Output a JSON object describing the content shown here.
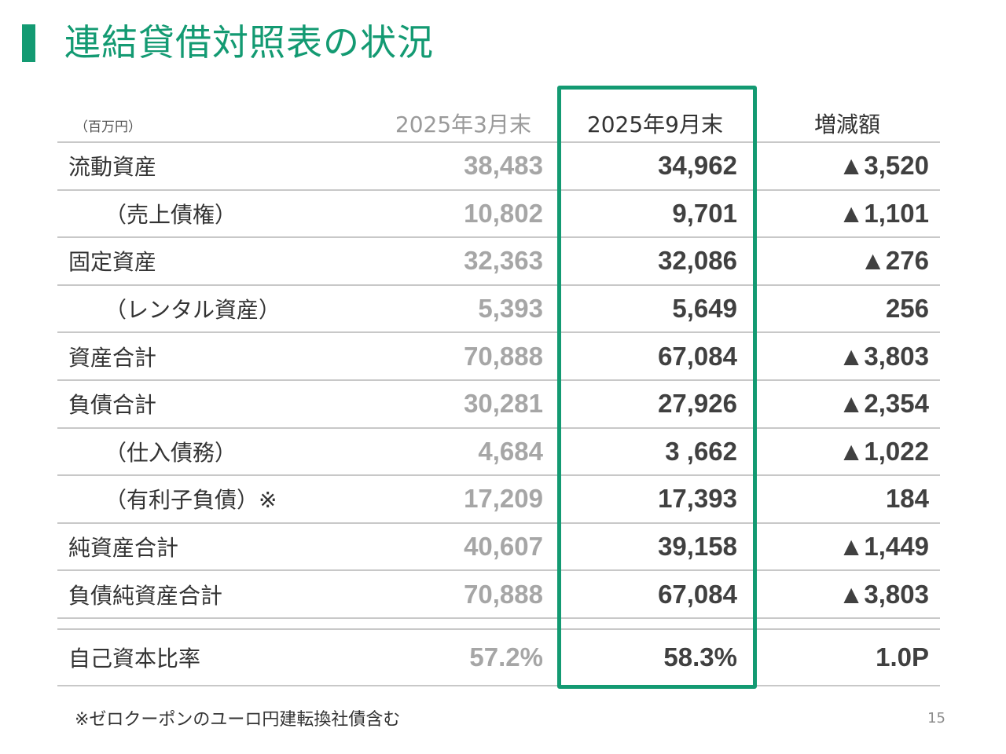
{
  "title": "連結貸借対照表の状況",
  "colors": {
    "accent": "#139a72",
    "rule": "#c8c8c8",
    "prev_value": "#a6a6a6",
    "current_value": "#404040"
  },
  "table": {
    "unit": "（百万円）",
    "headers": {
      "prev": "2025年3月末",
      "curr": "2025年9月末",
      "diff": "増減額"
    },
    "rows": [
      {
        "label": "流動資産",
        "prev": "38,483",
        "curr": "34,962",
        "diff": "▲3,520",
        "indent": false
      },
      {
        "label": "（売上債権）",
        "prev": "10,802",
        "curr": "9,701",
        "diff": "▲1,101",
        "indent": true
      },
      {
        "label": "固定資産",
        "prev": "32,363",
        "curr": "32,086",
        "diff": "▲276",
        "indent": false
      },
      {
        "label": "（レンタル資産）",
        "prev": "5,393",
        "curr": "5,649",
        "diff": "256",
        "indent": true
      },
      {
        "label": "資産合計",
        "prev": "70,888",
        "curr": "67,084",
        "diff": "▲3,803",
        "indent": false
      },
      {
        "label": "負債合計",
        "prev": "30,281",
        "curr": "27,926",
        "diff": "▲2,354",
        "indent": false
      },
      {
        "label": "（仕入債務）",
        "prev": "4,684",
        "curr": "3 ,662",
        "diff": "▲1,022",
        "indent": true
      },
      {
        "label": "（有利子負債）※",
        "prev": "17,209",
        "curr": "17,393",
        "diff": "184",
        "indent": true
      },
      {
        "label": "純資産合計",
        "prev": "40,607",
        "curr": "39,158",
        "diff": "▲1,449",
        "indent": false
      },
      {
        "label": "負債純資産合計",
        "prev": "70,888",
        "curr": "67,084",
        "diff": "▲3,803",
        "indent": false
      }
    ],
    "ratio": {
      "label": "自己資本比率",
      "prev": "57.2%",
      "curr": "58.3%",
      "diff": "1.0P"
    }
  },
  "footnote": "※ゼロクーポンのユーロ円建転換社債含む",
  "page_number": "15"
}
